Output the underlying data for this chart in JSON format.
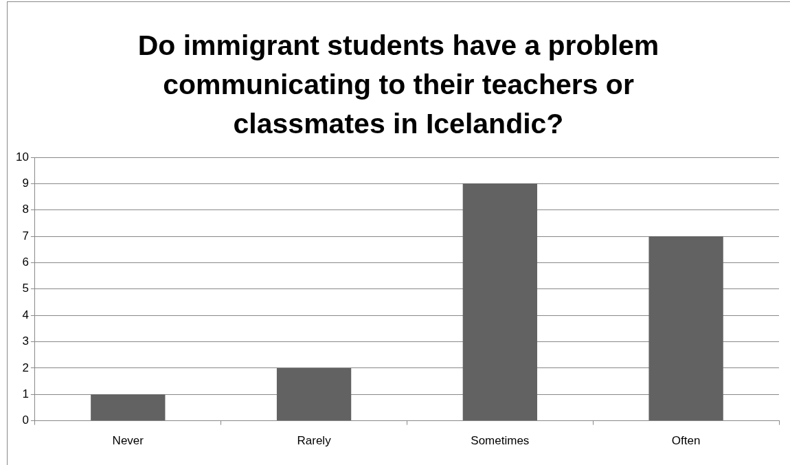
{
  "chart_data": {
    "type": "bar",
    "title": "Do immigrant students have a problem communicating to their teachers or classmates in Icelandic?",
    "categories": [
      "Never",
      "Rarely",
      "Sometimes",
      "Often"
    ],
    "values": [
      1,
      2,
      9,
      7
    ],
    "color": "#626262",
    "ylim": [
      0,
      10
    ],
    "yticks": [
      0,
      1,
      2,
      3,
      4,
      5,
      6,
      7,
      8,
      9,
      10
    ],
    "grid": "y",
    "legend": false
  }
}
